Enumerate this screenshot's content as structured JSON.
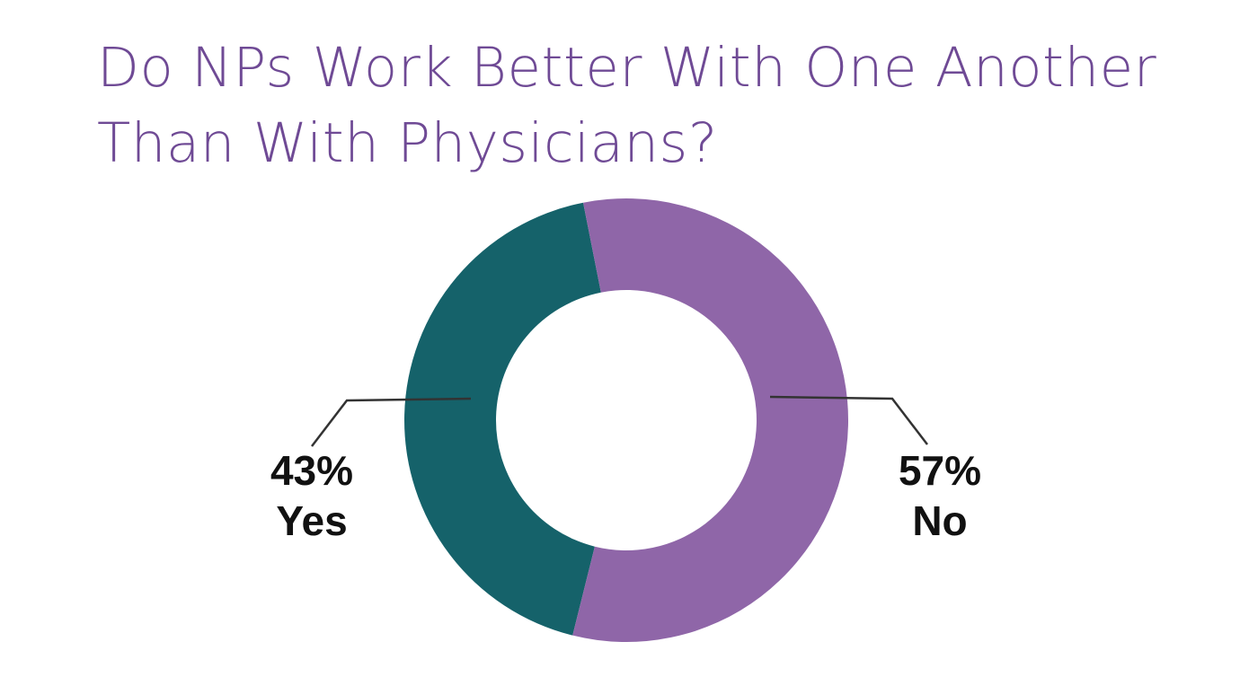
{
  "title": {
    "line1": "Do NPs Work Better With One Another",
    "line2": "Than With Physicians?"
  },
  "colors": {
    "title": "#6f4a95",
    "yes": "#15626a",
    "no": "#8f66a8",
    "leader": "#333333",
    "label": "#111111"
  },
  "labels": {
    "yes": {
      "percent": "43%",
      "name": "Yes"
    },
    "no": {
      "percent": "57%",
      "name": "No"
    }
  },
  "chart_data": {
    "type": "pie",
    "donut": true,
    "title": "Do NPs Work Better With One Another Than With Physicians?",
    "categories": [
      "Yes",
      "No"
    ],
    "values": [
      43,
      57
    ],
    "unit": "%",
    "colors": [
      "#15626a",
      "#8f66a8"
    ],
    "labels": [
      "43% Yes",
      "57% No"
    ],
    "legend": "none (callout labels with leader lines)"
  }
}
